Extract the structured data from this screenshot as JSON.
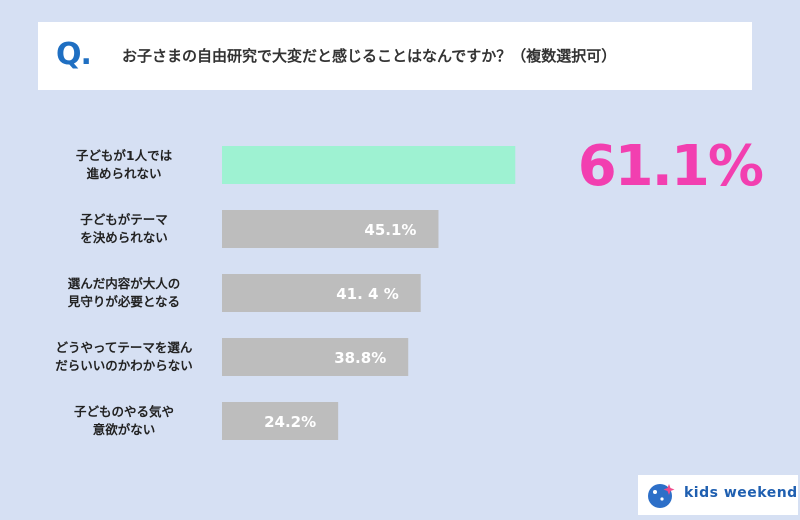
{
  "question": {
    "mark": "Q",
    "mark_dot": ".",
    "text": "お子さまの自由研究で大変だと感じることはなんですか？（複数選択可）"
  },
  "chart_data": {
    "type": "bar",
    "orientation": "horizontal",
    "title": "お子さまの自由研究で大変だと感じることはなんですか？（複数選択可）",
    "categories": [
      [
        "子どもが1人では",
        "進められない"
      ],
      [
        "子どもがテーマ",
        "を決められない"
      ],
      [
        "選んだ内容が大人の",
        "見守りが必要となる"
      ],
      [
        "どうやってテーマを選ん",
        "だらいいのかわからない"
      ],
      [
        "子どものやる気や",
        "意欲がない"
      ]
    ],
    "values": [
      61.1,
      45.1,
      41.4,
      38.8,
      24.2
    ],
    "value_labels": [
      "61.1%",
      "45.1%",
      "41. 4 %",
      "38.8%",
      "24.2%"
    ],
    "unit": "%",
    "xlim": [
      0,
      100
    ],
    "colors": {
      "highlight_bar": "#9ef2d2",
      "bar": "#bdbdbd",
      "highlight_label": "#f23fb0",
      "label": "#ffffff"
    },
    "highlight_index": 0,
    "grid": false,
    "legend": "none"
  },
  "logo": {
    "text": "kids weekend",
    "icon": "kids-weekend-logo-icon",
    "color": "#1f5fb0"
  }
}
